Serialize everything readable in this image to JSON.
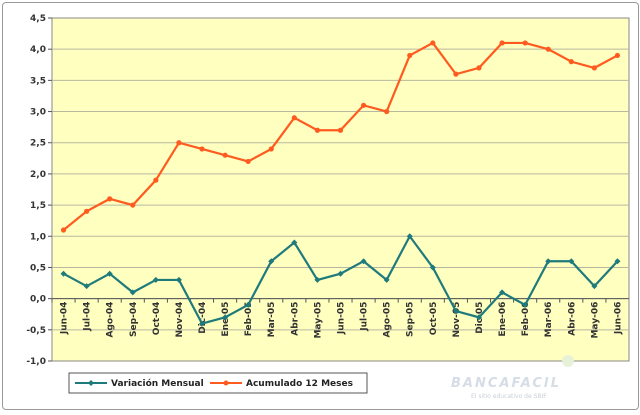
{
  "chart_data": {
    "type": "line",
    "categories": [
      "Jun-04",
      "Jul-04",
      "Ago-04",
      "Sep-04",
      "Oct-04",
      "Nov-04",
      "Dic-04",
      "Ene-05",
      "Feb-05",
      "Mar-05",
      "Abr-05",
      "May-05",
      "Jun-05",
      "Jul-05",
      "Ago-05",
      "Sep-05",
      "Oct-05",
      "Nov-05",
      "Dic-05",
      "Ene-06",
      "Feb-06",
      "Mar-06",
      "Abr-06",
      "May-06",
      "Jun-06"
    ],
    "series": [
      {
        "name": "Variación Mensual",
        "color": "#1f7a7c",
        "values": [
          0.4,
          0.2,
          0.4,
          0.1,
          0.3,
          0.3,
          -0.4,
          -0.3,
          -0.1,
          0.6,
          0.9,
          0.3,
          0.4,
          0.6,
          0.3,
          1.0,
          0.5,
          -0.2,
          -0.3,
          0.1,
          -0.1,
          0.6,
          0.6,
          0.2,
          0.6
        ]
      },
      {
        "name": "Acumulado 12 Meses",
        "color": "#ff5a1f",
        "values": [
          1.1,
          1.4,
          1.6,
          1.5,
          1.9,
          2.5,
          2.4,
          2.3,
          2.2,
          2.4,
          2.9,
          2.7,
          2.7,
          3.1,
          3.0,
          3.9,
          4.1,
          3.6,
          3.7,
          4.1,
          4.1,
          4.0,
          3.8,
          3.7,
          3.9
        ]
      }
    ],
    "ylim": [
      -1.0,
      4.5
    ],
    "yticks": [
      "4,5",
      "4,0",
      "3,5",
      "3,0",
      "2,5",
      "2,0",
      "1,5",
      "1,0",
      "0,5",
      "0,0",
      "-0,5",
      "-1,0"
    ],
    "grid": true,
    "plot_background": "#ffffc0",
    "legend_position": "bottom-left"
  },
  "watermark": {
    "brand": "BANCAFACIL",
    "tagline": "El sitio educativo de SBIF"
  }
}
